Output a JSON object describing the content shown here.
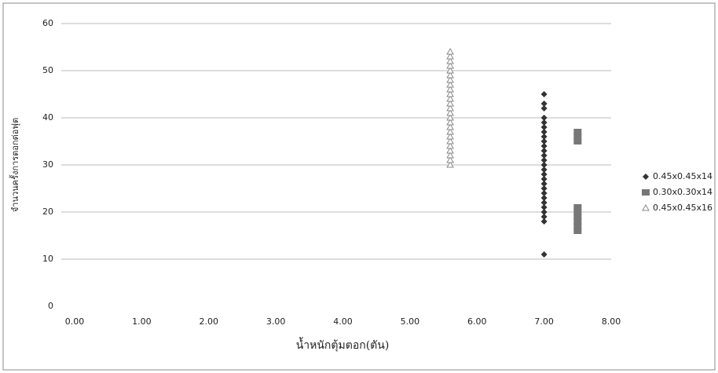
{
  "chart_data": {
    "type": "scatter",
    "x_label": "น้ำหนักตุ้มตอก(ตัน)",
    "y_label": "จำนวนครั้งการตอกต่อฟุต",
    "xlim": [
      0,
      8
    ],
    "xticks": [
      {
        "value": 0,
        "label": "0.00"
      },
      {
        "value": 1,
        "label": "1.00"
      },
      {
        "value": 2,
        "label": "2.00"
      },
      {
        "value": 3,
        "label": "3.00"
      },
      {
        "value": 4,
        "label": "4.00"
      },
      {
        "value": 5,
        "label": "5.00"
      },
      {
        "value": 6,
        "label": "6.00"
      },
      {
        "value": 7,
        "label": "7.00"
      },
      {
        "value": 8,
        "label": "8.00"
      }
    ],
    "ylim": [
      0,
      60
    ],
    "yticks": [
      0,
      10,
      20,
      30,
      40,
      50,
      60
    ],
    "grid": true,
    "legend": "right",
    "series": [
      {
        "name": "0.45x0.45x14",
        "color": "#333333",
        "marker": "diamond",
        "x": [
          7,
          7,
          7,
          7,
          7,
          7,
          7,
          7,
          7,
          7,
          7,
          7,
          7,
          7,
          7,
          7,
          7,
          7,
          7,
          7,
          7,
          7,
          7,
          7,
          7,
          7,
          7
        ],
        "values": [
          11,
          18,
          19,
          20,
          21,
          22,
          23,
          24,
          25,
          26,
          27,
          28,
          29,
          30,
          31,
          32,
          33,
          34,
          35,
          36,
          37,
          38,
          39,
          40,
          42,
          43,
          45
        ]
      },
      {
        "name": "0.30x0.30x14",
        "color": "#777777",
        "marker": "square",
        "x": [
          7.5,
          7.5,
          7.5,
          7.5,
          7.5,
          7.5,
          7.5,
          7.5,
          7.5
        ],
        "values": [
          16,
          17,
          18,
          19,
          20,
          21,
          35,
          36,
          37
        ]
      },
      {
        "name": "0.45x0.45x16",
        "color": "#888888",
        "marker": "triangle",
        "x": [
          5.6,
          5.6,
          5.6,
          5.6,
          5.6,
          5.6,
          5.6,
          5.6,
          5.6,
          5.6,
          5.6,
          5.6,
          5.6,
          5.6,
          5.6,
          5.6,
          5.6,
          5.6,
          5.6,
          5.6,
          5.6,
          5.6,
          5.6,
          5.6,
          5.6
        ],
        "values": [
          30,
          31,
          32,
          33,
          34,
          35,
          36,
          37,
          38,
          39,
          40,
          41,
          42,
          43,
          44,
          45,
          46,
          47,
          48,
          49,
          50,
          51,
          52,
          53,
          54
        ]
      }
    ]
  }
}
